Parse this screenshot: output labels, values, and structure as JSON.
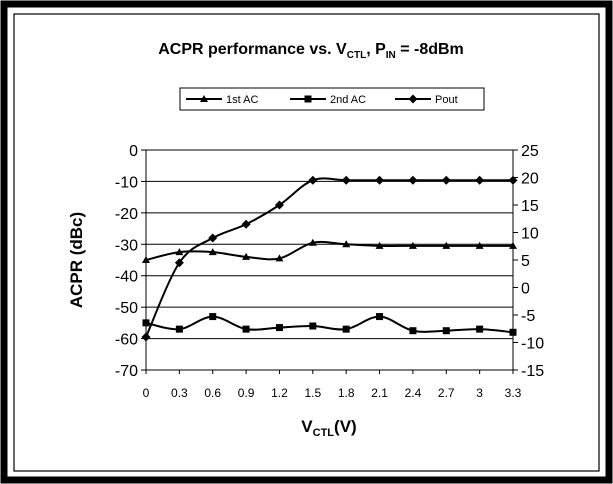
{
  "chart_data": {
    "type": "line",
    "title": {
      "main": "ACPR performance vs. V",
      "sub1": "CTL",
      "mid": ", P",
      "sub2": "IN",
      "tail": " = -8dBm"
    },
    "xlabel": {
      "main": "V",
      "sub": "CTL",
      "tail": "(V)"
    },
    "ylabel": "ACPR (dBc)",
    "ylabel_right": "",
    "categories": [
      "0",
      "0.3",
      "0.6",
      "0.9",
      "1.2",
      "1.5",
      "1.8",
      "2.1",
      "2.4",
      "2.7",
      "3",
      "3.3"
    ],
    "x": [
      0,
      0.3,
      0.6,
      0.9,
      1.2,
      1.5,
      1.8,
      2.1,
      2.4,
      2.7,
      3.0,
      3.3
    ],
    "ylim": [
      -70,
      0
    ],
    "y_ticks": [
      0,
      -10,
      -20,
      -30,
      -40,
      -50,
      -60,
      -70
    ],
    "ylim_right": [
      -15,
      25
    ],
    "y_ticks_right": [
      25,
      20,
      15,
      10,
      5,
      0,
      -5,
      -10,
      -15
    ],
    "grid": "horizontal",
    "legend_position": "top",
    "series": [
      {
        "name": "1st AC",
        "axis": "left",
        "marker": "triangle",
        "values": [
          -35,
          -32.5,
          -32.5,
          -34,
          -34.5,
          -29.5,
          -30,
          -30.5,
          -30.5,
          -30.5,
          -30.5,
          -30.5
        ]
      },
      {
        "name": "2nd AC",
        "axis": "left",
        "marker": "square",
        "values": [
          -55,
          -57,
          -53,
          -57,
          -56.5,
          -56,
          -57,
          -53,
          -57.5,
          -57.5,
          -57,
          -58
        ]
      },
      {
        "name": "Pout",
        "axis": "right",
        "marker": "diamond",
        "values": [
          -9,
          4.5,
          9,
          11.5,
          15,
          19.5,
          19.5,
          19.5,
          19.5,
          19.5,
          19.5,
          19.5
        ]
      }
    ]
  }
}
